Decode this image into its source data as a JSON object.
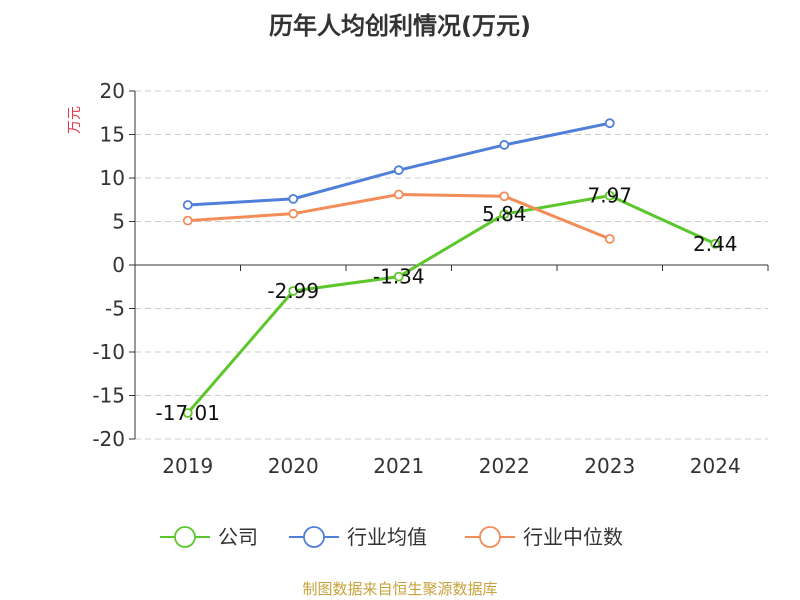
{
  "chart_data": {
    "type": "line",
    "title": "历年人均创利情况(万元)",
    "ylabel": "万元",
    "xlabel": "",
    "categories": [
      "2019",
      "2020",
      "2021",
      "2022",
      "2023",
      "2024"
    ],
    "ylim": [
      -20,
      20
    ],
    "yticks": [
      20,
      15,
      10,
      5,
      0,
      -5,
      -10,
      -15,
      -20
    ],
    "grid": true,
    "legend_position": "bottom",
    "series": [
      {
        "name": "公司",
        "color": "#5cc72a",
        "values": [
          -17.01,
          -2.99,
          -1.34,
          5.84,
          7.97,
          2.44
        ],
        "labels": [
          "-17.01",
          "-2.99",
          "-1.34",
          "5.84",
          "7.97",
          "2.44"
        ]
      },
      {
        "name": "行业均值",
        "color": "#4f7fd9",
        "values": [
          6.9,
          7.6,
          10.9,
          13.8,
          16.3,
          null
        ]
      },
      {
        "name": "行业中位数",
        "color": "#f28d58",
        "values": [
          5.1,
          5.9,
          8.1,
          7.9,
          3.0,
          null
        ]
      }
    ]
  },
  "footer": {
    "source_text": "制图数据来自恒生聚源数据库",
    "source_color": "#c8a23c"
  },
  "colors": {
    "ylabel": "#e0394a",
    "grid": "#cccccc",
    "axis": "#333333"
  }
}
